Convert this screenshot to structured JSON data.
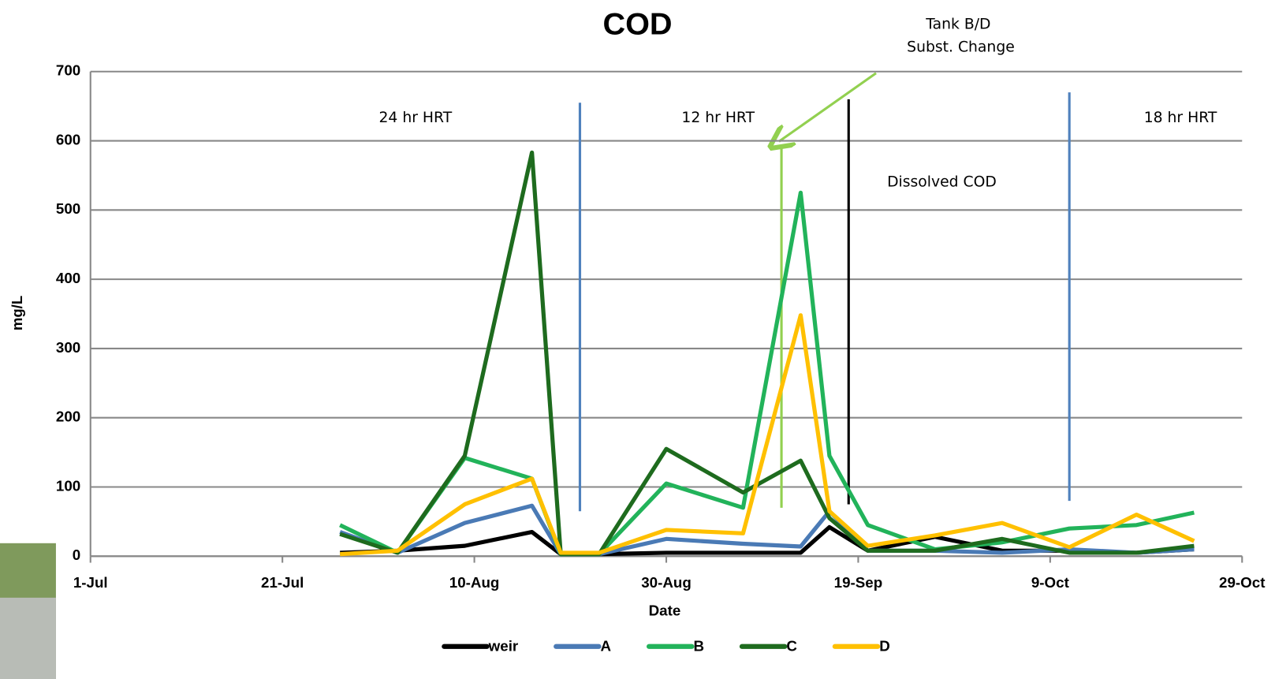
{
  "chart_data": {
    "type": "line",
    "title": "COD",
    "x_label": "Date",
    "y_label": "mg/L",
    "x": [
      "27-Jul",
      "2-Aug",
      "9-Aug",
      "16-Aug",
      "19-Aug",
      "23-Aug",
      "30-Aug",
      "7-Sep",
      "13-Sep",
      "16-Sep",
      "20-Sep",
      "27-Sep",
      "4-Oct",
      "11-Oct",
      "18-Oct",
      "24-Oct"
    ],
    "series": [
      {
        "name": "weir",
        "color": "#000000",
        "values": [
          5,
          8,
          15,
          35,
          3,
          3,
          5,
          5,
          5,
          42,
          8,
          28,
          8,
          8,
          5,
          10
        ]
      },
      {
        "name": "A",
        "color": "#4a7ab5",
        "values": [
          35,
          5,
          48,
          73,
          3,
          3,
          25,
          18,
          14,
          65,
          8,
          8,
          5,
          10,
          5,
          10
        ]
      },
      {
        "name": "B",
        "color": "#22b35a",
        "values": [
          45,
          5,
          142,
          112,
          3,
          3,
          105,
          70,
          525,
          145,
          45,
          10,
          20,
          40,
          45,
          63
        ]
      },
      {
        "name": "C",
        "color": "#1e6b1e",
        "values": [
          32,
          5,
          145,
          583,
          3,
          3,
          155,
          92,
          138,
          55,
          8,
          8,
          25,
          5,
          5,
          15
        ]
      },
      {
        "name": "D",
        "color": "#ffc000",
        "values": [
          3,
          8,
          75,
          112,
          5,
          5,
          38,
          33,
          348,
          65,
          15,
          30,
          48,
          13,
          60,
          22
        ]
      }
    ],
    "xlim": [
      "1-Jul",
      "29-Oct"
    ],
    "xticks": [
      "1-Jul",
      "21-Jul",
      "10-Aug",
      "30-Aug",
      "19-Sep",
      "9-Oct",
      "29-Oct"
    ],
    "ylim": [
      0,
      700
    ],
    "yticks": [
      0,
      100,
      200,
      300,
      400,
      500,
      600,
      700
    ],
    "grid": true,
    "legend": "bottom",
    "vlines": [
      {
        "x": "21-Aug",
        "y": [
          65,
          655
        ],
        "color": "#4f81bd"
      },
      {
        "x": "11-Sep",
        "y": [
          70,
          590
        ],
        "color": "#92d050"
      },
      {
        "x": "18-Sep",
        "y": [
          75,
          660
        ],
        "color": "#000000"
      },
      {
        "x": "11-Oct",
        "y": [
          80,
          670
        ],
        "color": "#4f81bd"
      }
    ],
    "annotations": [
      "24 hr HRT",
      "12 hr HRT",
      "18 hr HRT",
      "Dissolved COD",
      "Tank B/D",
      "Subst. Change"
    ]
  }
}
